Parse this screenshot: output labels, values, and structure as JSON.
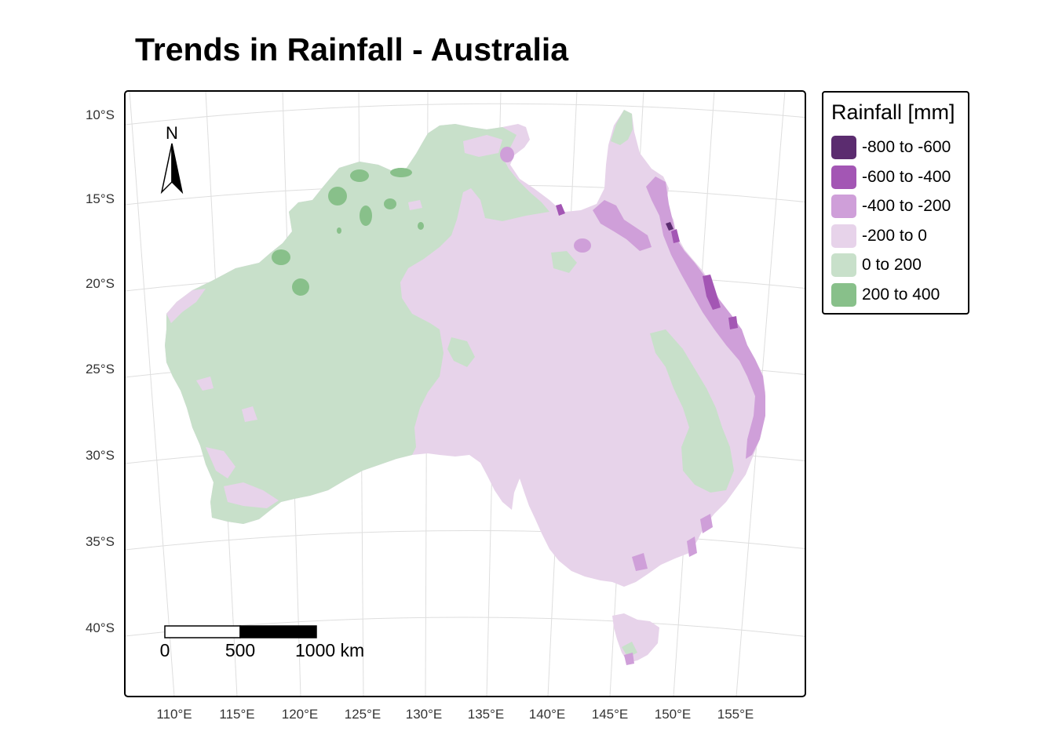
{
  "title": "Trends in Rainfall - Australia",
  "axes": {
    "lat_ticks": [
      "10°S",
      "15°S",
      "20°S",
      "25°S",
      "30°S",
      "35°S",
      "40°S"
    ],
    "lon_ticks": [
      "110°E",
      "115°E",
      "120°E",
      "125°E",
      "130°E",
      "135°E",
      "140°E",
      "145°E",
      "150°E",
      "155°E"
    ]
  },
  "legend": {
    "title": "Rainfall [mm]",
    "items": [
      {
        "label": "-800 to -600",
        "color": "#5b2c6f"
      },
      {
        "label": "-600 to -400",
        "color": "#a356b4"
      },
      {
        "label": "-400 to -200",
        "color": "#cf9fd9"
      },
      {
        "label": "-200 to 0",
        "color": "#e7d3ea"
      },
      {
        "label": "0 to 200",
        "color": "#c8e0ca"
      },
      {
        "label": "200 to 400",
        "color": "#88c08a"
      }
    ]
  },
  "north_arrow": {
    "label": "N"
  },
  "scale_bar": {
    "labels": [
      "0",
      "500",
      "1000 km"
    ]
  }
}
